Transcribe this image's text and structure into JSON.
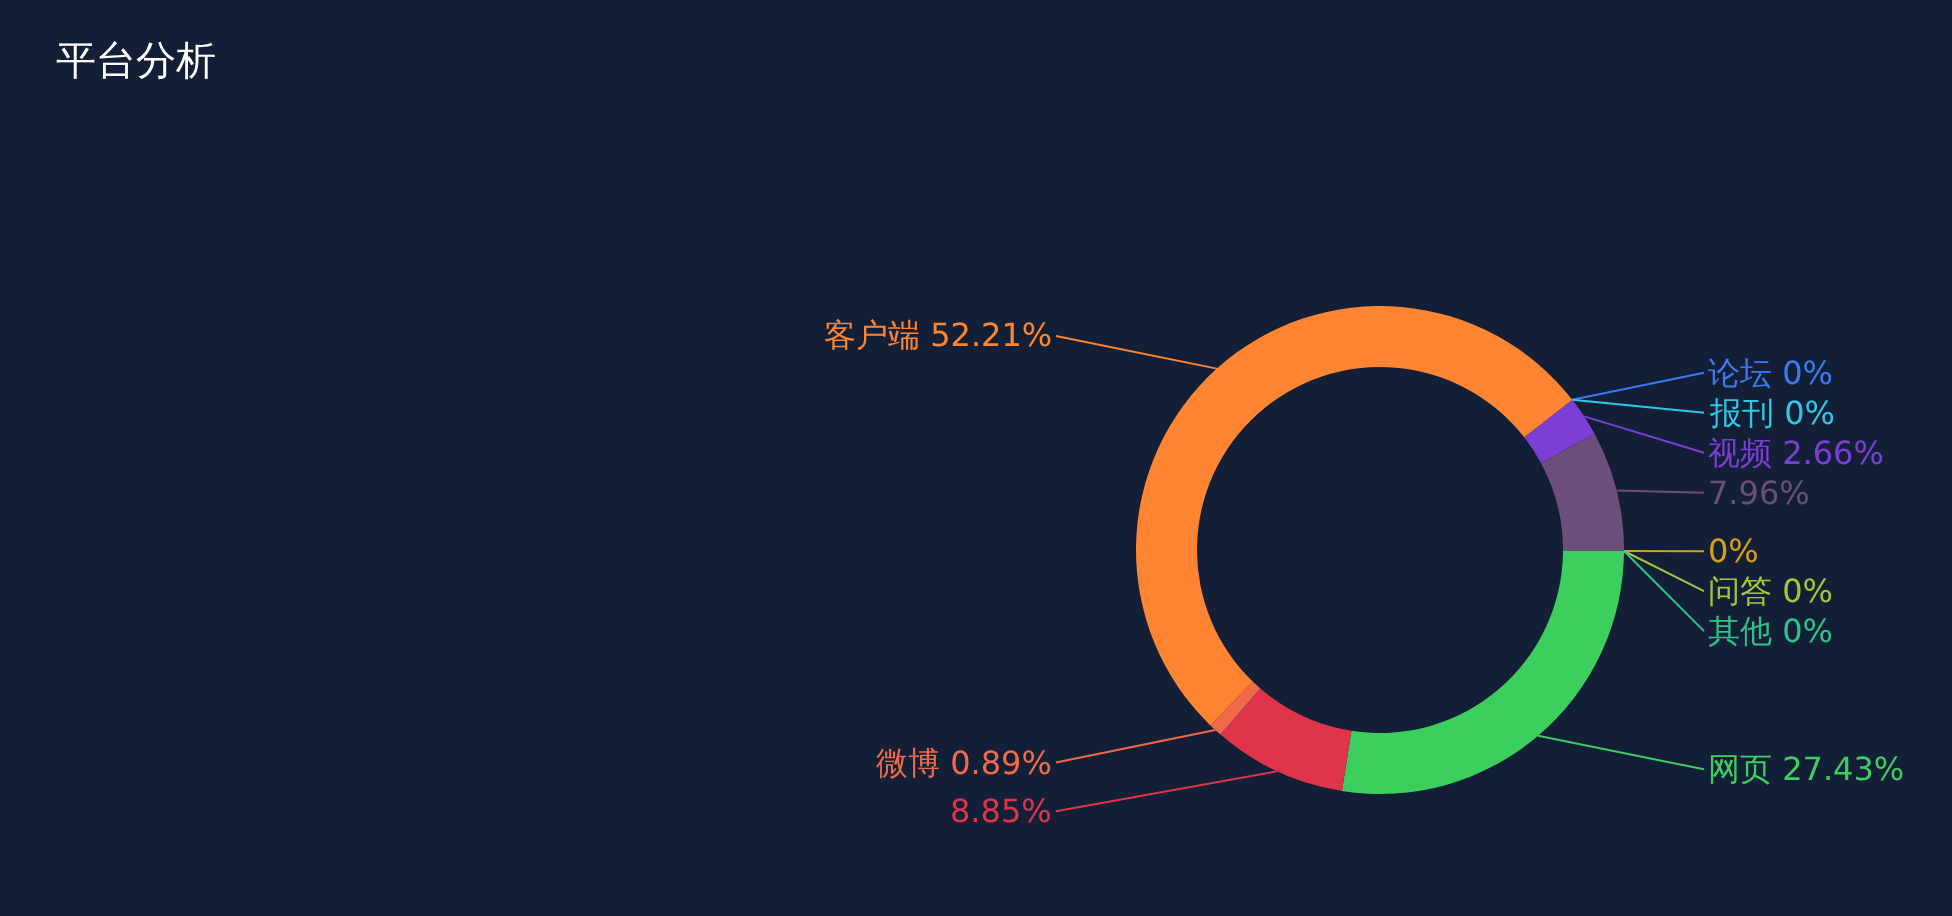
{
  "chart_data": {
    "type": "donut",
    "title": "平台分析",
    "categories": [
      "论坛",
      "报刊",
      "视频",
      null,
      null,
      "问答",
      "其他",
      "网页",
      null,
      "微博",
      "客户端"
    ],
    "values": [
      0,
      0,
      2.66,
      7.96,
      0,
      0,
      0,
      27.43,
      8.85,
      0.89,
      52.21
    ],
    "value_labels": [
      "0%",
      "0%",
      "2.66%",
      "7.96%",
      "0%",
      "0%",
      "0%",
      "27.43%",
      "8.85%",
      "0.89%",
      "52.21%"
    ],
    "colors": [
      "#3a7bf0",
      "#2ec7e6",
      "#7b3fd6",
      "#6b4f7a",
      "#d4a017",
      "#a8c33a",
      "#2ec28a",
      "#3ccf5e",
      "#e0344a",
      "#f06a4a",
      "#ff8533"
    ]
  }
}
